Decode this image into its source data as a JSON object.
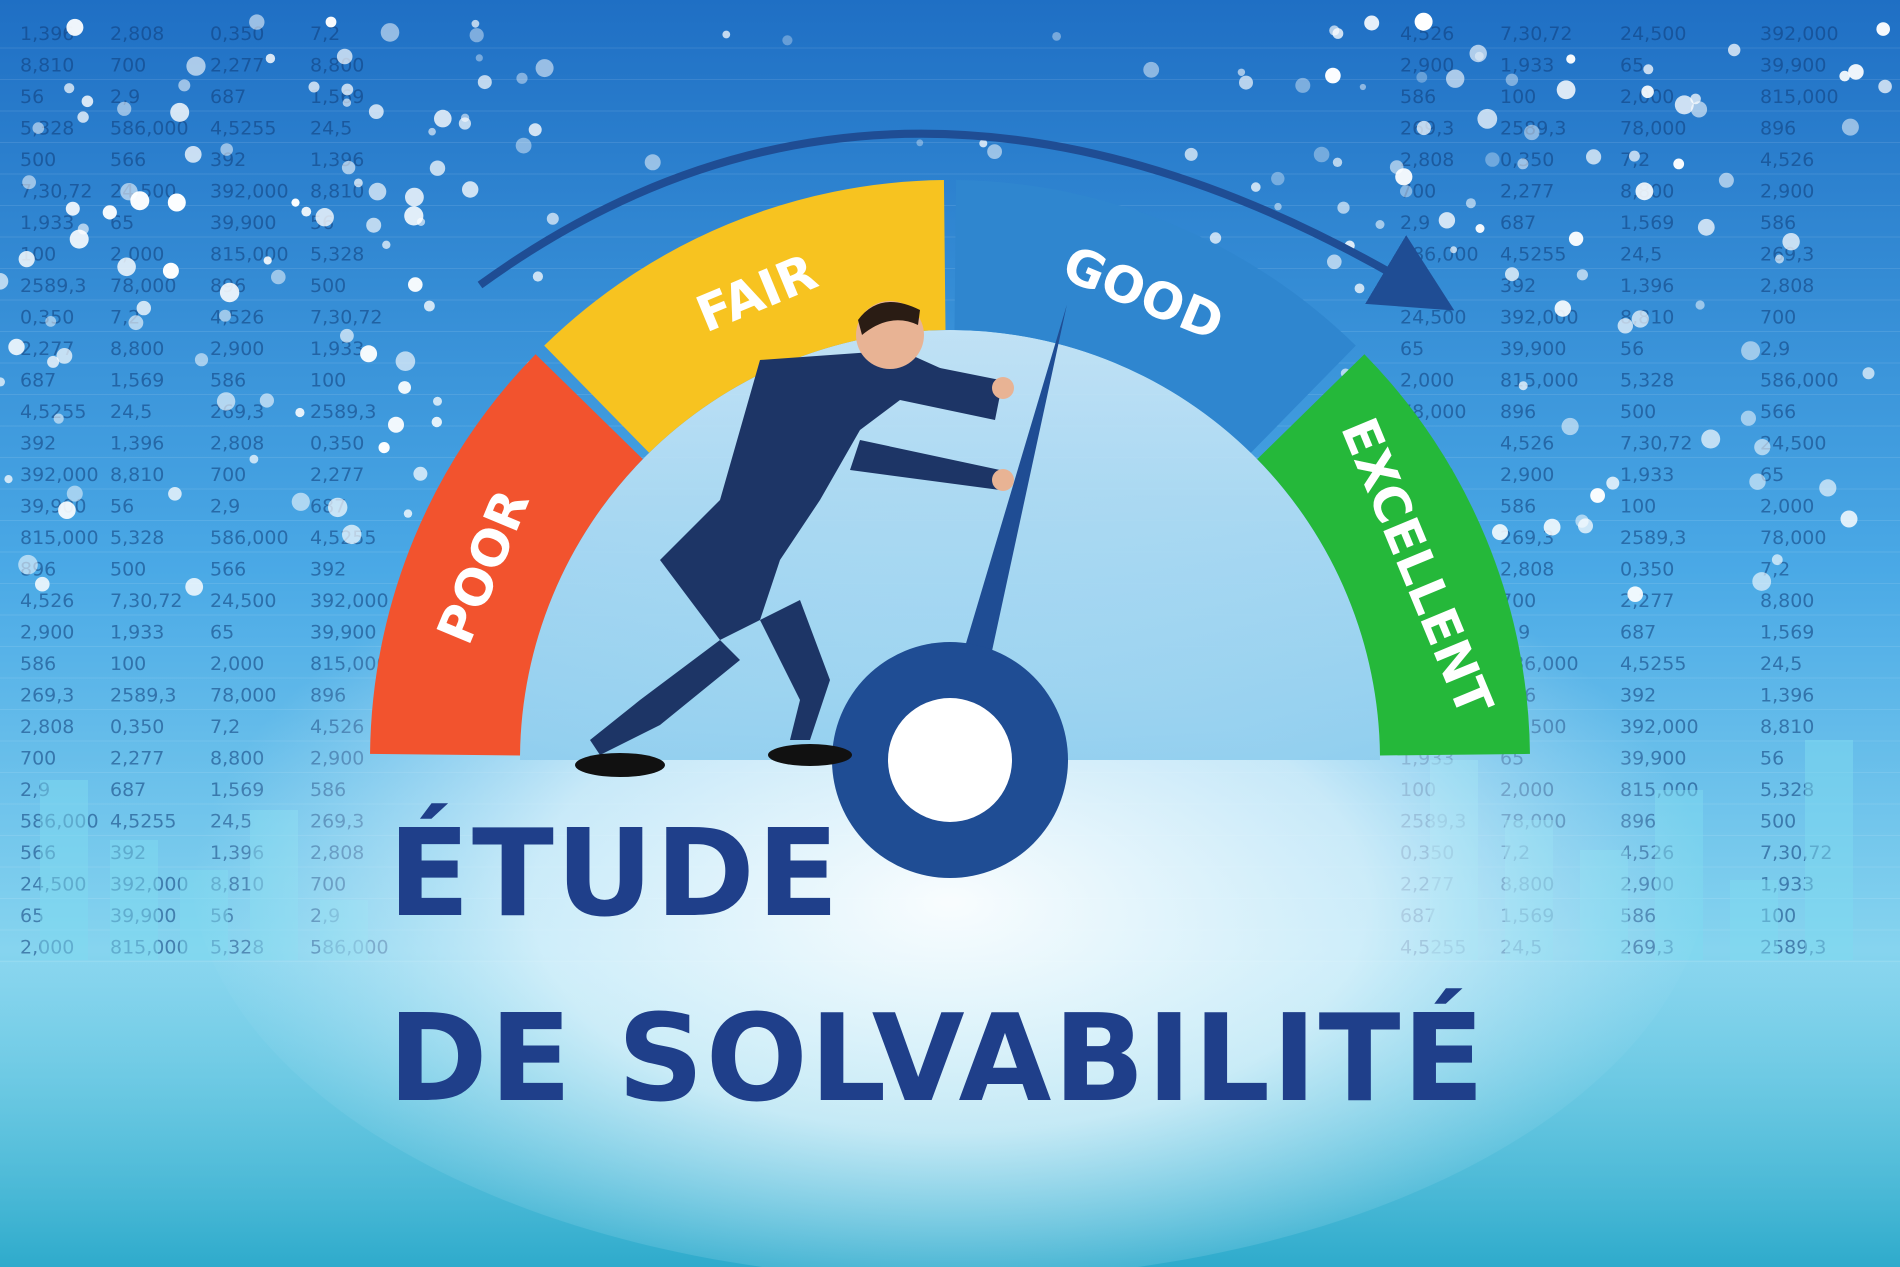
{
  "gauge": {
    "segments": [
      {
        "label": "POOR",
        "color": "#f2532e"
      },
      {
        "label": "FAIR",
        "color": "#f7c320"
      },
      {
        "label": "GOOD",
        "color": "#2f86cf"
      },
      {
        "label": "EXCELLENT",
        "color": "#25b83a"
      }
    ],
    "needle_level": 0.58,
    "needle_color": "#1f4d94",
    "arrow_color": "#1f4d94"
  },
  "spreadsheet": {
    "numbers": [
      "1,396",
      "2,808",
      "0,350",
      "7,2",
      "4,526",
      "7,30,72",
      "24,500",
      "392,000",
      "8,810",
      "700",
      "2,277",
      "8,800",
      "2,900",
      "1,933",
      "65",
      "39,900",
      "56",
      "2,9",
      "687",
      "1,569",
      "586",
      "100",
      "2,000",
      "815,000",
      "5,328",
      "586,000",
      "4,5255",
      "24,5",
      "269,3",
      "2589,3",
      "78,000",
      "896",
      "500",
      "566",
      "392"
    ]
  },
  "title": {
    "line1": "ÉTUDE",
    "line2": "DE SOLVABILITÉ",
    "color": "#1f3f8a"
  },
  "illustration": {
    "figure": "businessman-pushing-needle"
  }
}
